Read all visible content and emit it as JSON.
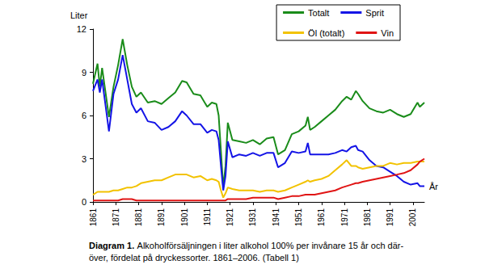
{
  "chart_data": {
    "type": "line",
    "y_label": "Liter",
    "x_label": "År",
    "caption": {
      "label": "Diagram 1.",
      "lines": [
        "Alkoholförsäljningen i liter alkohol 100% per invånare 15 år och där-",
        "över, fördelat på dryckessorter. 1861–2006. (Tabell 1)"
      ]
    },
    "x": [
      1861,
      1863,
      1864,
      1865,
      1868,
      1870,
      1872,
      1874,
      1876,
      1878,
      1880,
      1882,
      1885,
      1888,
      1891,
      1894,
      1897,
      1900,
      1902,
      1905,
      1908,
      1911,
      1913,
      1915,
      1916,
      1917,
      1918,
      1919,
      1920,
      1922,
      1925,
      1928,
      1931,
      1934,
      1937,
      1940,
      1942,
      1945,
      1948,
      1951,
      1954,
      1955,
      1956,
      1958,
      1961,
      1964,
      1967,
      1970,
      1972,
      1974,
      1976,
      1977,
      1979,
      1982,
      1985,
      1988,
      1991,
      1994,
      1997,
      2000,
      2003,
      2004,
      2006
    ],
    "series": [
      {
        "name": "Totalt",
        "color": "#1a8c1a",
        "values": [
          8.2,
          9.6,
          8.0,
          9.3,
          5.9,
          8.0,
          9.5,
          11.3,
          9.5,
          8.0,
          7.3,
          7.6,
          6.9,
          7.0,
          6.8,
          7.2,
          7.6,
          8.4,
          8.3,
          7.5,
          7.4,
          6.6,
          6.9,
          6.8,
          6.0,
          3.5,
          1.0,
          2.5,
          5.5,
          4.3,
          4.2,
          4.1,
          4.3,
          4.0,
          4.4,
          4.5,
          3.3,
          3.6,
          4.7,
          4.9,
          5.3,
          5.9,
          5.0,
          5.2,
          5.6,
          6.0,
          6.4,
          7.0,
          7.3,
          7.1,
          7.7,
          7.5,
          7.0,
          6.5,
          6.3,
          6.2,
          6.4,
          6.1,
          5.9,
          6.1,
          6.9,
          6.6,
          6.9
        ]
      },
      {
        "name": "Sprit",
        "color": "#1414e6",
        "values": [
          7.7,
          8.5,
          7.6,
          8.5,
          4.9,
          7.5,
          8.5,
          10.2,
          8.5,
          6.8,
          6.2,
          6.5,
          5.6,
          5.5,
          5.0,
          5.2,
          5.6,
          6.3,
          6.0,
          5.4,
          5.4,
          4.8,
          5.0,
          4.9,
          4.3,
          2.5,
          0.8,
          1.8,
          4.2,
          3.1,
          3.3,
          3.2,
          3.4,
          3.2,
          3.4,
          3.4,
          2.4,
          2.7,
          3.5,
          3.4,
          3.5,
          4.1,
          3.3,
          3.3,
          3.3,
          3.3,
          3.4,
          3.6,
          3.5,
          3.8,
          3.9,
          3.6,
          3.5,
          2.9,
          2.5,
          2.4,
          2.1,
          1.8,
          1.4,
          1.2,
          1.3,
          1.1,
          1.1
        ]
      },
      {
        "name": "Öl (totalt)",
        "color": "#f2c200",
        "values": [
          0.5,
          0.7,
          0.7,
          0.7,
          0.7,
          0.8,
          0.8,
          0.9,
          1.0,
          1.0,
          1.1,
          1.3,
          1.4,
          1.5,
          1.5,
          1.7,
          1.9,
          1.9,
          1.9,
          1.7,
          1.8,
          1.5,
          1.6,
          1.5,
          1.4,
          0.8,
          0.3,
          0.6,
          1.0,
          0.9,
          0.8,
          0.8,
          0.8,
          0.7,
          0.8,
          0.8,
          0.7,
          0.8,
          1.0,
          1.2,
          1.4,
          1.5,
          1.4,
          1.5,
          1.6,
          1.8,
          2.2,
          2.6,
          2.9,
          2.5,
          2.5,
          2.4,
          2.3,
          2.4,
          2.5,
          2.5,
          2.7,
          2.6,
          2.7,
          2.7,
          2.8,
          2.8,
          2.8
        ]
      },
      {
        "name": "Vin",
        "color": "#e01414",
        "values": [
          0.1,
          0.1,
          0.1,
          0.1,
          0.1,
          0.1,
          0.1,
          0.2,
          0.2,
          0.2,
          0.1,
          0.1,
          0.1,
          0.1,
          0.1,
          0.1,
          0.1,
          0.1,
          0.1,
          0.1,
          0.1,
          0.1,
          0.1,
          0.1,
          0.1,
          0.1,
          0.1,
          0.1,
          0.2,
          0.2,
          0.2,
          0.2,
          0.3,
          0.3,
          0.3,
          0.3,
          0.2,
          0.3,
          0.4,
          0.4,
          0.5,
          0.5,
          0.5,
          0.5,
          0.6,
          0.7,
          0.8,
          1.0,
          1.1,
          1.2,
          1.3,
          1.3,
          1.4,
          1.5,
          1.6,
          1.7,
          1.8,
          1.9,
          2.0,
          2.2,
          2.6,
          2.8,
          3.0
        ]
      }
    ],
    "xlim": [
      1861,
      2006
    ],
    "xticks": [
      1861,
      1871,
      1881,
      1891,
      1901,
      1911,
      1921,
      1931,
      1941,
      1951,
      1961,
      1971,
      1981,
      1991,
      2001
    ],
    "ylim": [
      0,
      12
    ],
    "yticks": [
      0,
      3,
      6,
      9,
      12
    ],
    "grid": false,
    "legend": "top-right"
  }
}
